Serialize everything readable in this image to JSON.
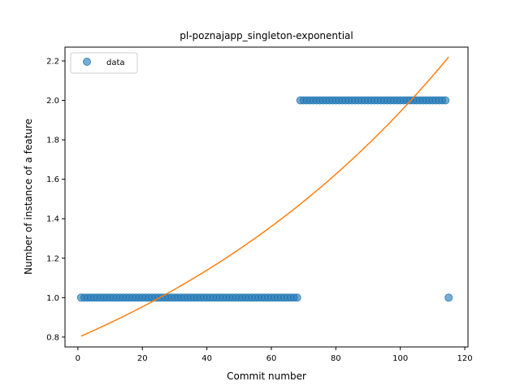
{
  "chart_data": {
    "type": "scatter",
    "title": "pl-poznajapp_singleton-exponential",
    "xlabel": "Commit number",
    "ylabel": "Number of instance of a feature",
    "xlim": [
      -4,
      121
    ],
    "ylim": [
      0.75,
      2.27
    ],
    "xticks": [
      0,
      20,
      40,
      60,
      80,
      100,
      120
    ],
    "yticks": [
      0.8,
      1.0,
      1.2,
      1.4,
      1.6,
      1.8,
      2.0,
      2.2
    ],
    "legend": {
      "position": "top-left",
      "entries": [
        "data"
      ]
    },
    "grid": false,
    "series": [
      {
        "name": "data",
        "kind": "scatter",
        "color": "#1f77b4",
        "segments": [
          {
            "x_from": 1,
            "x_to": 68,
            "y": 1.0
          },
          {
            "x_from": 69,
            "x_to": 114,
            "y": 2.0
          },
          {
            "x_from": 115,
            "x_to": 115,
            "y": 1.0
          }
        ]
      },
      {
        "kind": "line",
        "color": "#ff7f0e",
        "function": "exponential",
        "x_range": [
          1,
          115
        ],
        "y_start": 0.805,
        "y_end": 2.22
      }
    ]
  }
}
